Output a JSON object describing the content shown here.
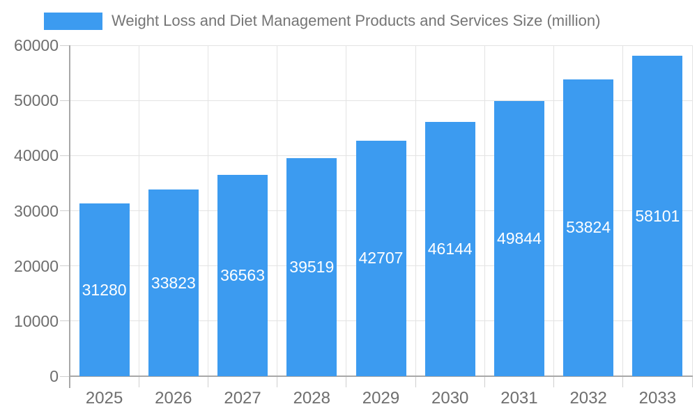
{
  "legend": {
    "label": "Weight Loss and Diet Management Products and Services Size (million)"
  },
  "colors": {
    "bar": "#3C9BF0",
    "legend_text": "#757575",
    "axis_text": "#6e6e6e",
    "value_label": "#ffffff",
    "gridline": "#e3e3e3",
    "tick": "#cfcfcf",
    "axis_line": "#a8a8a8"
  },
  "chart_data": {
    "type": "bar",
    "title": "Weight Loss and Diet Management Products and Services Size (million)",
    "categories": [
      "2025",
      "2026",
      "2027",
      "2028",
      "2029",
      "2030",
      "2031",
      "2032",
      "2033"
    ],
    "series": [
      {
        "name": "Weight Loss and Diet Management Products and Services Size (million)",
        "values": [
          31280,
          33823,
          36563,
          39519,
          42707,
          46144,
          49844,
          53824,
          58101
        ]
      }
    ],
    "value_labels_shown": true,
    "xlabel": "",
    "ylabel": "",
    "ylim": [
      0,
      60000
    ],
    "y_ticks": [
      0,
      10000,
      20000,
      30000,
      40000,
      50000,
      60000
    ],
    "grid": true,
    "legend_position": "top-left"
  }
}
